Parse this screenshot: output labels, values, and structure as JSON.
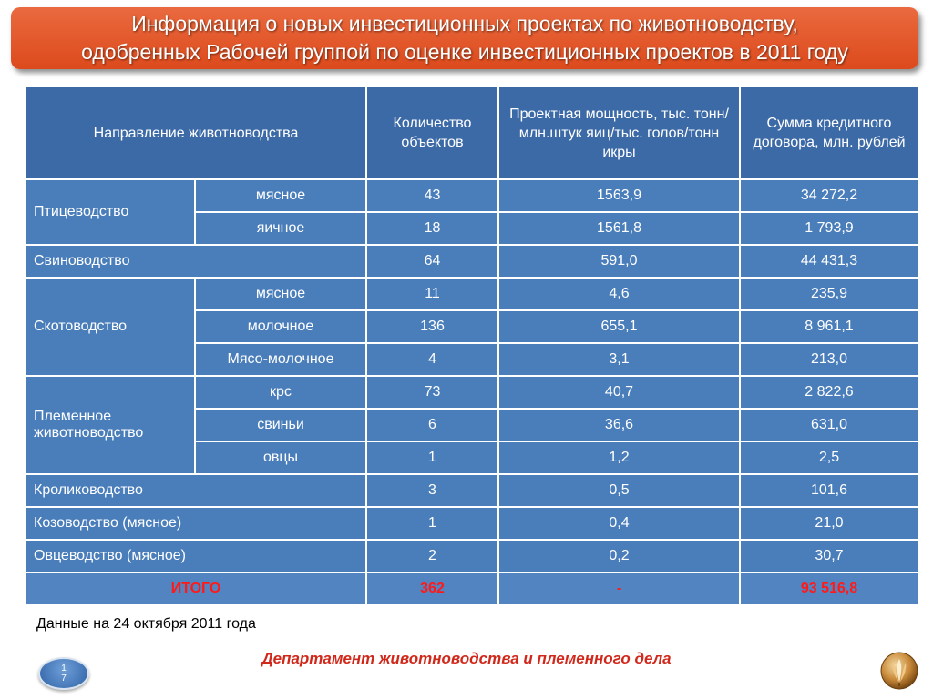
{
  "title": {
    "line1": "Информация о новых инвестиционных проектах по животноводству,",
    "line2": "одобренных Рабочей группой по оценке инвестиционных проектов в 2011 году"
  },
  "table": {
    "headers": [
      "Направление животноводства",
      "Количество объектов",
      "Проектная мощность, тыс. тонн/млн.штук яиц/тыс. голов/тонн икры",
      "Сумма кредитного договора, млн. рублей"
    ],
    "groups": {
      "poultry": "Птицеводство",
      "cattle": "Скотоводство",
      "breeding": "Племенное животноводство"
    },
    "rows": [
      {
        "sub": "мясное",
        "count": "43",
        "capacity": "1563,9",
        "sum": "34 272,2"
      },
      {
        "sub": "яичное",
        "count": "18",
        "capacity": "1561,8",
        "sum": "1 793,9"
      },
      {
        "name": "Свиноводство",
        "count": "64",
        "capacity": "591,0",
        "sum": "44 431,3"
      },
      {
        "sub": "мясное",
        "count": "11",
        "capacity": "4,6",
        "sum": "235,9"
      },
      {
        "sub": "молочное",
        "count": "136",
        "capacity": "655,1",
        "sum": "8 961,1"
      },
      {
        "sub": "Мясо-молочное",
        "count": "4",
        "capacity": "3,1",
        "sum": "213,0"
      },
      {
        "sub": "крс",
        "count": "73",
        "capacity": "40,7",
        "sum": "2 822,6"
      },
      {
        "sub": "свиньи",
        "count": "6",
        "capacity": "36,6",
        "sum": "631,0"
      },
      {
        "sub": "овцы",
        "count": "1",
        "capacity": "1,2",
        "sum": "2,5"
      },
      {
        "name": "Кролиководство",
        "count": "3",
        "capacity": "0,5",
        "sum": "101,6"
      },
      {
        "name": "Козоводство (мясное)",
        "count": "1",
        "capacity": "0,4",
        "sum": "21,0"
      },
      {
        "name": "Овцеводство (мясное)",
        "count": "2",
        "capacity": "0,2",
        "sum": "30,7"
      }
    ],
    "total": {
      "label": "ИТОГО",
      "count": "362",
      "capacity": "-",
      "sum": "93 516,8"
    }
  },
  "note": "Данные на 24 октября 2011 года",
  "footer": "Департамент животноводства и племенного дела",
  "page_number": {
    "top": "1",
    "bottom": "7"
  },
  "colors": {
    "title_bg": "#dc4a1c",
    "table_cell": "#4a7ebb",
    "table_header": "#3c6aa7",
    "total_text": "#ff1a1a",
    "footer_text": "#d0291b"
  },
  "icons": {
    "logo": "wheat-emblem-icon"
  }
}
